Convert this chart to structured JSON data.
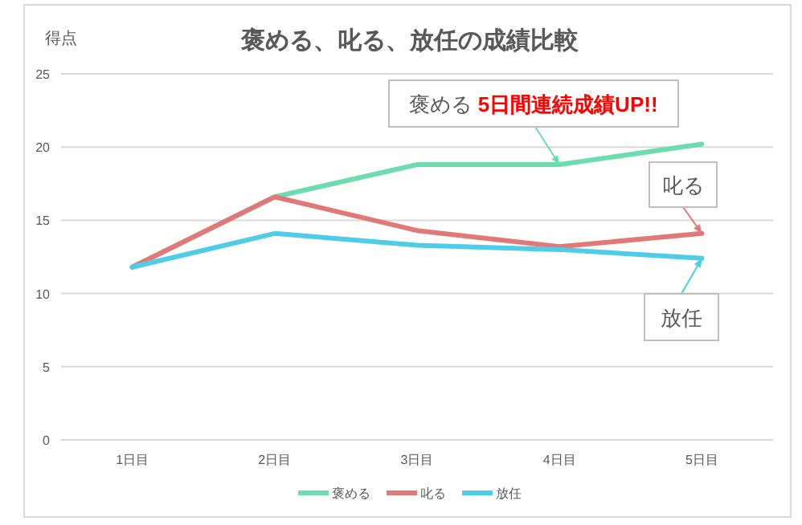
{
  "chart_data": {
    "type": "line",
    "title": "褒める、叱る、放任の成績比較",
    "ylabel": "得点",
    "categories": [
      "1日目",
      "2日目",
      "3日目",
      "4日目",
      "5日目"
    ],
    "series": [
      {
        "name": "褒める",
        "color": "#6ddcb1",
        "values": [
          11.8,
          16.6,
          18.8,
          18.8,
          20.2
        ]
      },
      {
        "name": "叱る",
        "color": "#e07a78",
        "values": [
          11.8,
          16.6,
          14.3,
          13.2,
          14.1
        ]
      },
      {
        "name": "放任",
        "color": "#4fcde6",
        "values": [
          11.8,
          14.1,
          13.3,
          13.0,
          12.4
        ]
      }
    ],
    "ylim": [
      0,
      25
    ],
    "yticks": [
      0,
      5,
      10,
      15,
      20,
      25
    ],
    "grid": "y",
    "legend": "bottom",
    "marker": "none",
    "line_style": "solid",
    "annotations": [
      {
        "text": "褒める 5日間連続成績UP!!",
        "x": "4日目",
        "y": 18.8
      },
      {
        "text": "叱る",
        "x": "5日目",
        "y": 14.1
      },
      {
        "text": "放任",
        "x": "5日目",
        "y": 12.4
      }
    ]
  }
}
